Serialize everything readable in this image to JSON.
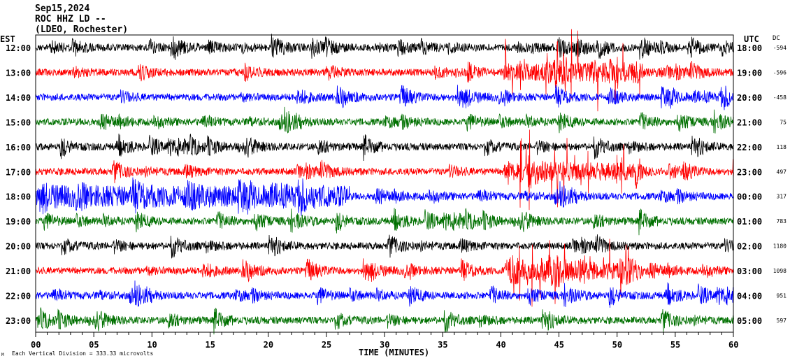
{
  "chart_data": {
    "type": "line",
    "title_lines": [
      "Sep15,2024",
      "ROC HHZ LD --",
      "(LDEO, Rochester)"
    ],
    "left_axis_label": "EST",
    "right_axis_label": "UTC",
    "dc_label": "DC",
    "xlabel": "TIME (MINUTES)",
    "xlim": [
      0,
      60
    ],
    "x_ticks": [
      "00",
      "05",
      "10",
      "15",
      "20",
      "25",
      "30",
      "35",
      "40",
      "45",
      "50",
      "55",
      "60"
    ],
    "scale_note": "Each Vertical Division = 333.33 microvolts",
    "corner_mark": "M",
    "trace_colors": [
      "#000000",
      "#ff0000",
      "#0000ff",
      "#007000"
    ],
    "rows": [
      {
        "est": "12:00",
        "utc": "18:00",
        "dc": "-594"
      },
      {
        "est": "13:00",
        "utc": "19:00",
        "dc": "-596"
      },
      {
        "est": "14:00",
        "utc": "20:00",
        "dc": "-458"
      },
      {
        "est": "15:00",
        "utc": "21:00",
        "dc": "75"
      },
      {
        "est": "16:00",
        "utc": "22:00",
        "dc": "118"
      },
      {
        "est": "17:00",
        "utc": "23:00",
        "dc": "497"
      },
      {
        "est": "18:00",
        "utc": "00:00",
        "dc": "317"
      },
      {
        "est": "19:00",
        "utc": "01:00",
        "dc": "783"
      },
      {
        "est": "20:00",
        "utc": "02:00",
        "dc": "1180"
      },
      {
        "est": "21:00",
        "utc": "03:00",
        "dc": "1098"
      },
      {
        "est": "22:00",
        "utc": "04:00",
        "dc": "951"
      },
      {
        "est": "23:00",
        "utc": "05:00",
        "dc": "597"
      }
    ]
  }
}
